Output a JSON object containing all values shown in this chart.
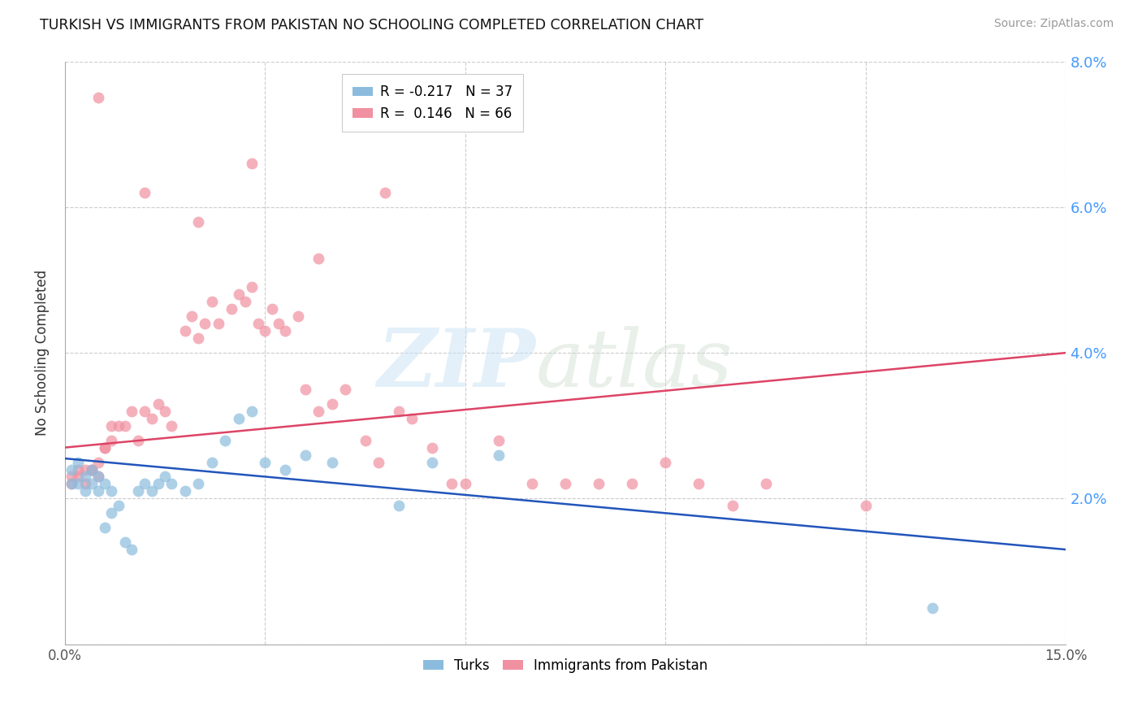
{
  "title": "TURKISH VS IMMIGRANTS FROM PAKISTAN NO SCHOOLING COMPLETED CORRELATION CHART",
  "source": "Source: ZipAtlas.com",
  "ylabel": "No Schooling Completed",
  "xmin": 0.0,
  "xmax": 0.15,
  "ymin": 0.0,
  "ymax": 0.08,
  "turks_color": "#8bbcde",
  "pakistan_color": "#f090a0",
  "turks_line_color": "#2255bb",
  "pakistan_line_color": "#dd4466",
  "background_color": "#ffffff",
  "grid_color": "#cccccc",
  "right_tick_color": "#4499ff",
  "turks_line_y0": 0.0255,
  "turks_line_y1": 0.013,
  "pakistan_line_y0": 0.027,
  "pakistan_line_y1": 0.04,
  "turks_scatter_x": [
    0.001,
    0.001,
    0.002,
    0.002,
    0.003,
    0.003,
    0.004,
    0.004,
    0.005,
    0.005,
    0.006,
    0.006,
    0.007,
    0.007,
    0.008,
    0.009,
    0.01,
    0.011,
    0.012,
    0.013,
    0.014,
    0.015,
    0.016,
    0.018,
    0.02,
    0.022,
    0.024,
    0.026,
    0.028,
    0.03,
    0.033,
    0.036,
    0.04,
    0.05,
    0.055,
    0.065,
    0.13
  ],
  "turks_scatter_y": [
    0.022,
    0.024,
    0.022,
    0.025,
    0.023,
    0.021,
    0.024,
    0.022,
    0.023,
    0.021,
    0.022,
    0.016,
    0.021,
    0.018,
    0.019,
    0.014,
    0.013,
    0.021,
    0.022,
    0.021,
    0.022,
    0.023,
    0.022,
    0.021,
    0.022,
    0.025,
    0.028,
    0.031,
    0.032,
    0.025,
    0.024,
    0.026,
    0.025,
    0.019,
    0.025,
    0.026,
    0.005
  ],
  "pakistan_scatter_x": [
    0.001,
    0.001,
    0.002,
    0.002,
    0.003,
    0.003,
    0.004,
    0.004,
    0.005,
    0.005,
    0.006,
    0.006,
    0.007,
    0.007,
    0.008,
    0.009,
    0.01,
    0.011,
    0.012,
    0.013,
    0.014,
    0.015,
    0.016,
    0.018,
    0.019,
    0.02,
    0.021,
    0.022,
    0.023,
    0.025,
    0.026,
    0.027,
    0.028,
    0.029,
    0.03,
    0.031,
    0.032,
    0.033,
    0.035,
    0.036,
    0.038,
    0.04,
    0.042,
    0.045,
    0.047,
    0.05,
    0.052,
    0.055,
    0.058,
    0.06,
    0.065,
    0.07,
    0.075,
    0.08,
    0.085,
    0.09,
    0.095,
    0.1,
    0.105,
    0.12,
    0.005,
    0.012,
    0.02,
    0.028,
    0.038,
    0.048
  ],
  "pakistan_scatter_y": [
    0.022,
    0.023,
    0.023,
    0.024,
    0.022,
    0.024,
    0.024,
    0.024,
    0.025,
    0.023,
    0.027,
    0.027,
    0.03,
    0.028,
    0.03,
    0.03,
    0.032,
    0.028,
    0.032,
    0.031,
    0.033,
    0.032,
    0.03,
    0.043,
    0.045,
    0.042,
    0.044,
    0.047,
    0.044,
    0.046,
    0.048,
    0.047,
    0.049,
    0.044,
    0.043,
    0.046,
    0.044,
    0.043,
    0.045,
    0.035,
    0.032,
    0.033,
    0.035,
    0.028,
    0.025,
    0.032,
    0.031,
    0.027,
    0.022,
    0.022,
    0.028,
    0.022,
    0.022,
    0.022,
    0.022,
    0.025,
    0.022,
    0.019,
    0.022,
    0.019,
    0.075,
    0.062,
    0.058,
    0.066,
    0.053,
    0.062
  ],
  "legend1_label": "R = -0.217   N = 37",
  "legend2_label": "R =  0.146   N = 66",
  "bottom_label1": "Turks",
  "bottom_label2": "Immigrants from Pakistan"
}
